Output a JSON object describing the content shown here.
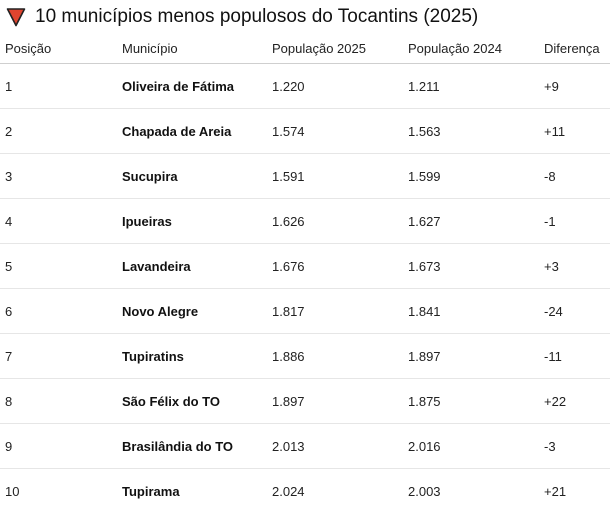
{
  "title": "10 municípios menos populosos do Tocantins (2025)",
  "colors": {
    "indicator": "#e0442f",
    "indicator_border": "#222222"
  },
  "icon": "down-triangle-icon",
  "headers": {
    "position": "Posição",
    "municipality": "Município",
    "pop2025": "População 2025",
    "pop2024": "População 2024",
    "difference": "Diferença"
  },
  "rows": [
    {
      "position": "1",
      "municipality": "Oliveira de Fátima",
      "pop2025": "1.220",
      "pop2024": "1.211",
      "difference": "+9"
    },
    {
      "position": "2",
      "municipality": "Chapada de Areia",
      "pop2025": "1.574",
      "pop2024": "1.563",
      "difference": "+11"
    },
    {
      "position": "3",
      "municipality": "Sucupira",
      "pop2025": "1.591",
      "pop2024": "1.599",
      "difference": "-8"
    },
    {
      "position": "4",
      "municipality": "Ipueiras",
      "pop2025": "1.626",
      "pop2024": "1.627",
      "difference": "-1"
    },
    {
      "position": "5",
      "municipality": "Lavandeira",
      "pop2025": "1.676",
      "pop2024": "1.673",
      "difference": "+3"
    },
    {
      "position": "6",
      "municipality": "Novo Alegre",
      "pop2025": "1.817",
      "pop2024": "1.841",
      "difference": "-24"
    },
    {
      "position": "7",
      "municipality": "Tupiratins",
      "pop2025": "1.886",
      "pop2024": "1.897",
      "difference": "-11"
    },
    {
      "position": "8",
      "municipality": "São Félix do TO",
      "pop2025": "1.897",
      "pop2024": "1.875",
      "difference": "+22"
    },
    {
      "position": "9",
      "municipality": "Brasilândia do TO",
      "pop2025": "2.013",
      "pop2024": "2.016",
      "difference": "-3"
    },
    {
      "position": "10",
      "municipality": "Tupirama",
      "pop2025": "2.024",
      "pop2024": "2.003",
      "difference": "+21"
    }
  ]
}
